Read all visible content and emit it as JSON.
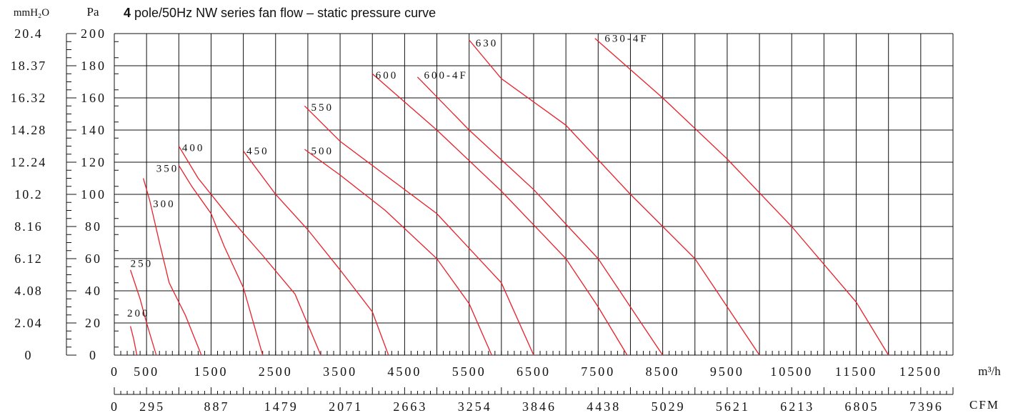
{
  "chart_data": {
    "type": "line",
    "title_bold": "4",
    "title_rest": " pole/50Hz NW series fan flow – static pressure curve",
    "left_axis_unit": "mmH₂O",
    "right_axis_unit": "Pa",
    "x_unit": "m³/h",
    "cfm_unit": "CFM",
    "xlim": [
      0,
      13000
    ],
    "ylim": [
      0,
      200
    ],
    "mmh2o_ticks": [
      "0",
      "2.04",
      "4.08",
      "6.12",
      "8.16",
      "10.2",
      "12.24",
      "14.28",
      "16.32",
      "18.37",
      "20.4"
    ],
    "pa_ticks": [
      "0",
      "20",
      "40",
      "60",
      "80",
      "100",
      "120",
      "140",
      "160",
      "180",
      "200"
    ],
    "x_ticks": [
      {
        "value": 0,
        "label": "0"
      },
      {
        "value": 500,
        "label": "500"
      },
      {
        "value": 1500,
        "label": "1500"
      },
      {
        "value": 2500,
        "label": "2500"
      },
      {
        "value": 3500,
        "label": "3500"
      },
      {
        "value": 4500,
        "label": "4500"
      },
      {
        "value": 5500,
        "label": "5500"
      },
      {
        "value": 6500,
        "label": "6500"
      },
      {
        "value": 7500,
        "label": "7500"
      },
      {
        "value": 8500,
        "label": "8500"
      },
      {
        "value": 9500,
        "label": "9500"
      },
      {
        "value": 10500,
        "label": "10500"
      },
      {
        "value": 11500,
        "label": "11500"
      },
      {
        "value": 12500,
        "label": "12500"
      }
    ],
    "cfm_ticks": [
      {
        "value": 0,
        "label": "0"
      },
      {
        "value": 500,
        "label": "295"
      },
      {
        "value": 1500,
        "label": "887"
      },
      {
        "value": 2500,
        "label": "1479"
      },
      {
        "value": 3500,
        "label": "2071"
      },
      {
        "value": 4500,
        "label": "2663"
      },
      {
        "value": 5500,
        "label": "3254"
      },
      {
        "value": 6500,
        "label": "3846"
      },
      {
        "value": 7500,
        "label": "4438"
      },
      {
        "value": 8500,
        "label": "5029"
      },
      {
        "value": 9500,
        "label": "5621"
      },
      {
        "value": 10500,
        "label": "6213"
      },
      {
        "value": 11500,
        "label": "6805"
      },
      {
        "value": 12500,
        "label": "7396"
      }
    ],
    "grid": true,
    "line_color": "#e8202a",
    "series": [
      {
        "name": "200",
        "label_at": [
          200,
          24
        ],
        "points": [
          [
            250,
            18
          ],
          [
            300,
            10
          ],
          [
            350,
            0
          ]
        ]
      },
      {
        "name": "250",
        "label_at": [
          250,
          55
        ],
        "points": [
          [
            250,
            53
          ],
          [
            400,
            35
          ],
          [
            500,
            20
          ],
          [
            650,
            0
          ]
        ]
      },
      {
        "name": "300",
        "label_at": [
          600,
          92
        ],
        "points": [
          [
            450,
            110
          ],
          [
            550,
            96
          ],
          [
            700,
            70
          ],
          [
            850,
            45
          ],
          [
            1100,
            25
          ],
          [
            1350,
            0
          ]
        ]
      },
      {
        "name": "350",
        "label_at": [
          650,
          114
        ],
        "points": [
          [
            1000,
            118
          ],
          [
            1200,
            105
          ],
          [
            1500,
            88
          ],
          [
            1700,
            68
          ],
          [
            2000,
            42
          ],
          [
            2300,
            0
          ]
        ]
      },
      {
        "name": "400",
        "label_at": [
          1050,
          127
        ],
        "points": [
          [
            1000,
            130
          ],
          [
            1300,
            110
          ],
          [
            1800,
            85
          ],
          [
            2300,
            62
          ],
          [
            2800,
            38
          ],
          [
            3200,
            0
          ]
        ]
      },
      {
        "name": "450",
        "label_at": [
          2050,
          125
        ],
        "points": [
          [
            2000,
            127
          ],
          [
            2500,
            100
          ],
          [
            3000,
            78
          ],
          [
            3500,
            53
          ],
          [
            4000,
            27
          ],
          [
            4250,
            0
          ]
        ]
      },
      {
        "name": "500",
        "label_at": [
          3050,
          125
        ],
        "points": [
          [
            2950,
            128
          ],
          [
            3500,
            112
          ],
          [
            4200,
            90
          ],
          [
            5000,
            60
          ],
          [
            5500,
            32
          ],
          [
            5850,
            0
          ]
        ]
      },
      {
        "name": "550",
        "label_at": [
          3050,
          152
        ],
        "points": [
          [
            2950,
            155
          ],
          [
            3500,
            133
          ],
          [
            4000,
            118
          ],
          [
            5000,
            88
          ],
          [
            6000,
            45
          ],
          [
            6500,
            0
          ]
        ]
      },
      {
        "name": "600",
        "label_at": [
          4050,
          172
        ],
        "points": [
          [
            4000,
            175
          ],
          [
            5000,
            140
          ],
          [
            6000,
            102
          ],
          [
            7000,
            60
          ],
          [
            7500,
            30
          ],
          [
            7950,
            0
          ]
        ]
      },
      {
        "name": "600-4F",
        "label_at": [
          4800,
          172
        ],
        "points": [
          [
            4700,
            173
          ],
          [
            5500,
            140
          ],
          [
            6500,
            103
          ],
          [
            7500,
            60
          ],
          [
            8500,
            0
          ]
        ]
      },
      {
        "name": "630",
        "label_at": [
          5600,
          192
        ],
        "points": [
          [
            5500,
            196
          ],
          [
            6000,
            172
          ],
          [
            7000,
            143
          ],
          [
            8000,
            100
          ],
          [
            9000,
            60
          ],
          [
            10000,
            0
          ]
        ]
      },
      {
        "name": "630-4F",
        "label_at": [
          7600,
          195
        ],
        "points": [
          [
            7450,
            197
          ],
          [
            8500,
            160
          ],
          [
            9500,
            122
          ],
          [
            10500,
            80
          ],
          [
            11500,
            33
          ],
          [
            12000,
            0
          ]
        ]
      }
    ]
  }
}
